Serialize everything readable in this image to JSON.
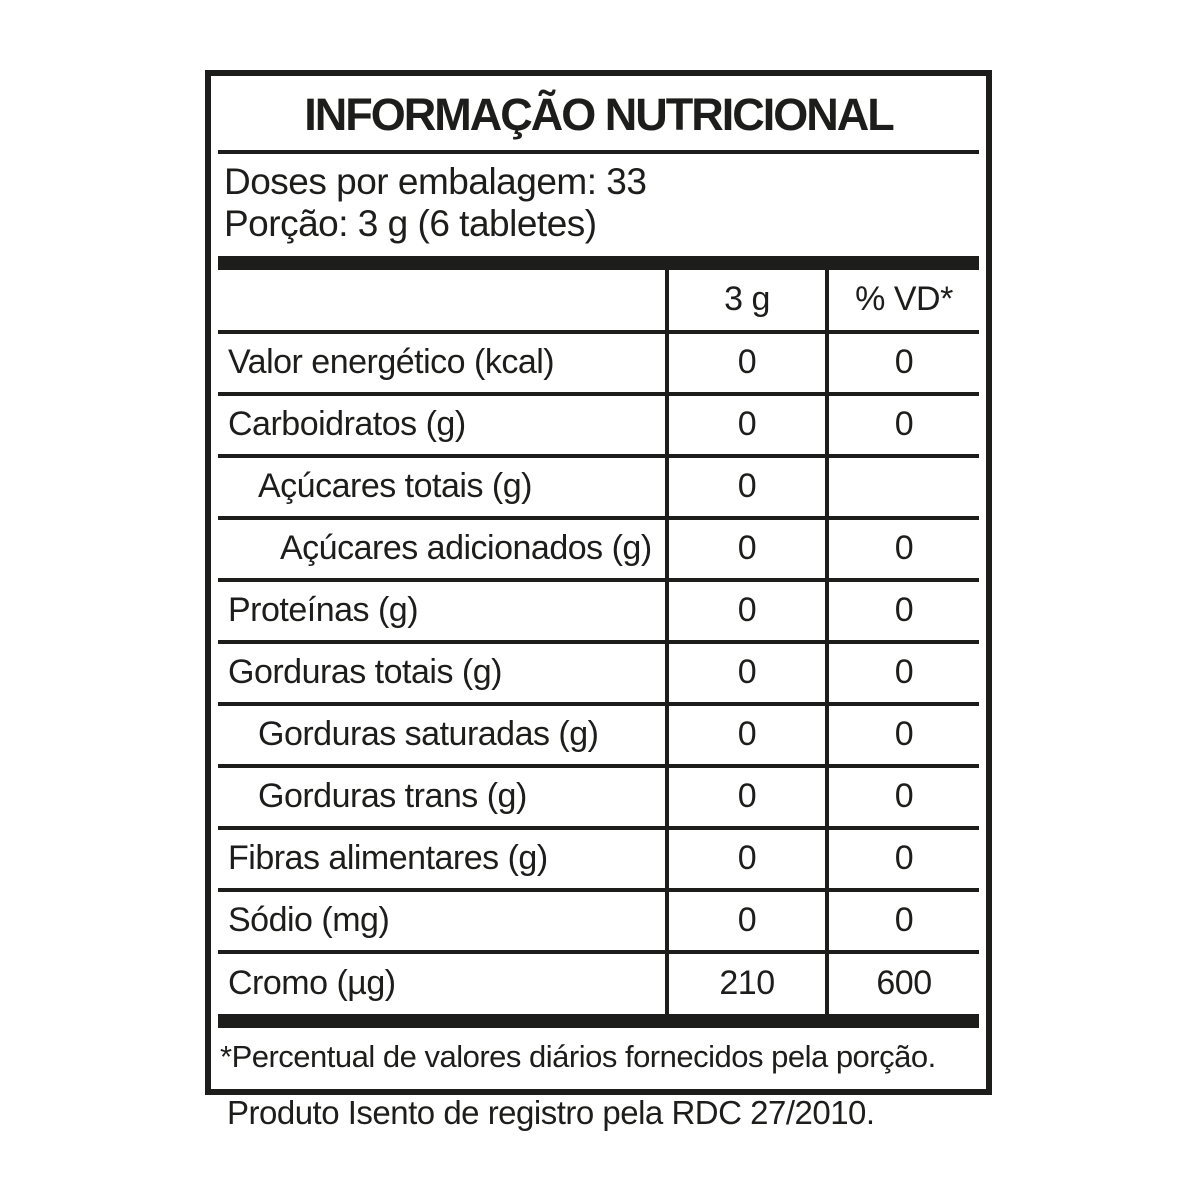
{
  "label": {
    "title": "INFORMAÇÃO NUTRICIONAL",
    "servings_line": "Doses por embalagem: 33",
    "portion_line": "Porção: 3 g (6 tabletes)",
    "columns": [
      "3 g",
      "% VD*"
    ],
    "rows": [
      {
        "name": "Valor energético (kcal)",
        "indent": 0,
        "amount": "0",
        "dv": "0"
      },
      {
        "name": "Carboidratos (g)",
        "indent": 0,
        "amount": "0",
        "dv": "0"
      },
      {
        "name": "Açúcares totais (g)",
        "indent": 1,
        "amount": "0",
        "dv": ""
      },
      {
        "name": "Açúcares adicionados (g)",
        "indent": 2,
        "amount": "0",
        "dv": "0"
      },
      {
        "name": "Proteínas (g)",
        "indent": 0,
        "amount": "0",
        "dv": "0"
      },
      {
        "name": "Gorduras totais (g)",
        "indent": 0,
        "amount": "0",
        "dv": "0"
      },
      {
        "name": "Gorduras saturadas (g)",
        "indent": 1,
        "amount": "0",
        "dv": "0"
      },
      {
        "name": "Gorduras trans (g)",
        "indent": 1,
        "amount": "0",
        "dv": "0"
      },
      {
        "name": "Fibras alimentares (g)",
        "indent": 0,
        "amount": "0",
        "dv": "0"
      },
      {
        "name": "Sódio (mg)",
        "indent": 0,
        "amount": "0",
        "dv": "0"
      },
      {
        "name": "Cromo (µg)",
        "indent": 0,
        "amount": "210",
        "dv": "600"
      }
    ],
    "footnote": "*Percentual de valores diários fornecidos pela porção.",
    "below_note": "Produto Isento de registro pela RDC 27/2010.",
    "colors": {
      "ink": "#1d1d1b",
      "background": "#ffffff"
    }
  }
}
